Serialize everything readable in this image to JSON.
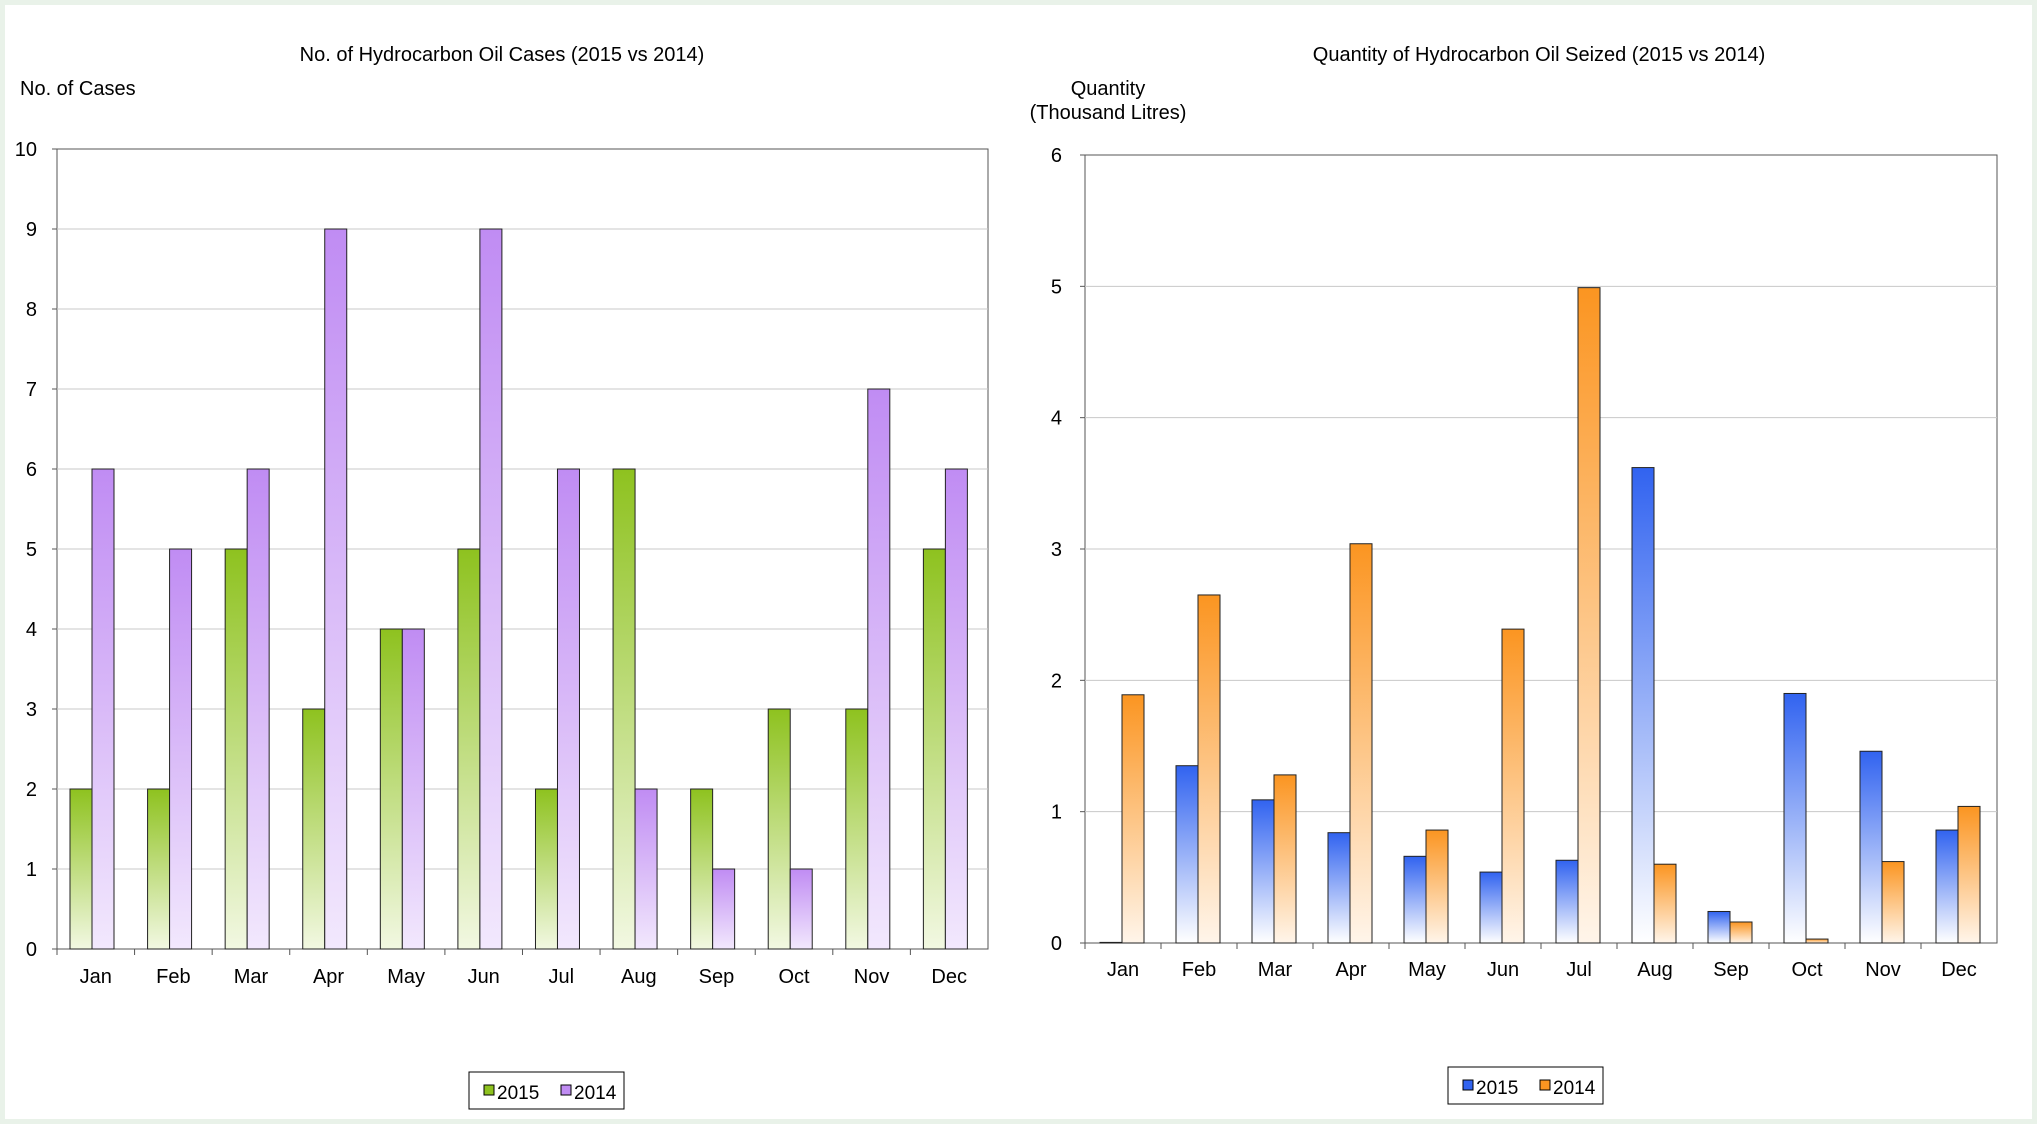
{
  "chart_data": [
    {
      "type": "bar",
      "title": "No. of Hydrocarbon Oil Cases (2015 vs 2014)",
      "ylabel": "No. of Cases",
      "xlabel": "",
      "categories": [
        "Jan",
        "Feb",
        "Mar",
        "Apr",
        "May",
        "Jun",
        "Jul",
        "Aug",
        "Sep",
        "Oct",
        "Nov",
        "Dec"
      ],
      "series": [
        {
          "name": "2015",
          "values": [
            2,
            2,
            5,
            3,
            4,
            5,
            2,
            6,
            2,
            3,
            3,
            5
          ],
          "color": "#8ec21f",
          "color_light": "#f2f8e2"
        },
        {
          "name": "2014",
          "values": [
            6,
            5,
            6,
            9,
            4,
            9,
            6,
            2,
            1,
            1,
            7,
            6
          ],
          "color": "#c08cf3",
          "color_light": "#f2e8fd"
        }
      ],
      "ylim": [
        0,
        10
      ],
      "yticks": [
        0,
        1,
        2,
        3,
        4,
        5,
        6,
        7,
        8,
        9,
        10
      ],
      "grid": true,
      "legend": "bottom-center"
    },
    {
      "type": "bar",
      "title": "Quantity of Hydrocarbon Oil Seized (2015 vs 2014)",
      "ylabel": [
        "Quantity",
        "(Thousand Litres)"
      ],
      "xlabel": "",
      "categories": [
        "Jan",
        "Feb",
        "Mar",
        "Apr",
        "May",
        "Jun",
        "Jul",
        "Aug",
        "Sep",
        "Oct",
        "Nov",
        "Dec"
      ],
      "series": [
        {
          "name": "2015",
          "values": [
            0,
            1.35,
            1.09,
            0.84,
            0.66,
            0.54,
            0.63,
            3.62,
            0.24,
            1.9,
            1.46,
            0.86
          ],
          "color": "#3163f0",
          "color_light": "#ffffff"
        },
        {
          "name": "2014",
          "values": [
            1.89,
            2.65,
            1.28,
            3.04,
            0.86,
            2.39,
            4.99,
            0.6,
            0.16,
            0.03,
            0.62,
            1.04
          ],
          "color": "#fb9521",
          "color_light": "#fff5ea"
        }
      ],
      "ylim": [
        0,
        6
      ],
      "yticks": [
        0,
        1,
        2,
        3,
        4,
        5,
        6
      ],
      "grid": true,
      "legend": "bottom-center"
    }
  ]
}
